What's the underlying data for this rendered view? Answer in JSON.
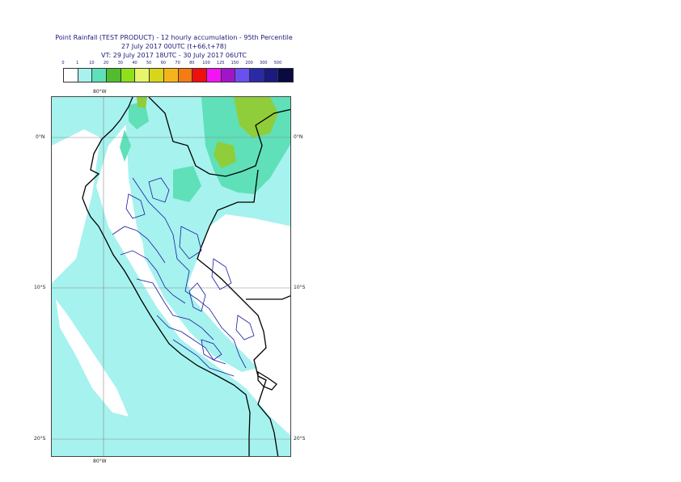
{
  "map": {
    "title": "Point Rainfall (TEST PRODUCT) - 12 hourly accumulation - 95th Percentile",
    "base_time": "27 July 2017 00UTC (t+66,t+78)",
    "valid_time": "VT: 29 July 2017 18UTC - 30 July 2017 06UTC",
    "legend": {
      "thresholds": [
        "0",
        "1",
        "10",
        "20",
        "30",
        "40",
        "50",
        "60",
        "70",
        "80",
        "100",
        "125",
        "150",
        "200",
        "300",
        "500"
      ],
      "colors": [
        "#ffffff",
        "#a6f2ef",
        "#5fe0b8",
        "#4fbd2f",
        "#8ee01a",
        "#e6f56a",
        "#d8d61a",
        "#f5b51a",
        "#f57b13",
        "#ee0f0f",
        "#f214f2",
        "#a214c8",
        "#6b50f0",
        "#2a2aa6",
        "#1a1a80",
        "#0a0a40"
      ]
    },
    "labels": {
      "lon_top": "80°W",
      "lon_bottom": "80°W",
      "lat_0_left": "0°N",
      "lat_0_right": "0°N",
      "lat_10_left": "10°S",
      "lat_10_right": "10°S",
      "lat_20_left": "20°S",
      "lat_20_right": "20°S"
    },
    "colors": {
      "light_rain": "#a6f2ef",
      "moderate_rain": "#5fe0b8",
      "heavy_rain": "#8fcd3a",
      "coastline": "#000000",
      "admin_border": "#1a1aa0",
      "gridline": "#888888"
    }
  }
}
